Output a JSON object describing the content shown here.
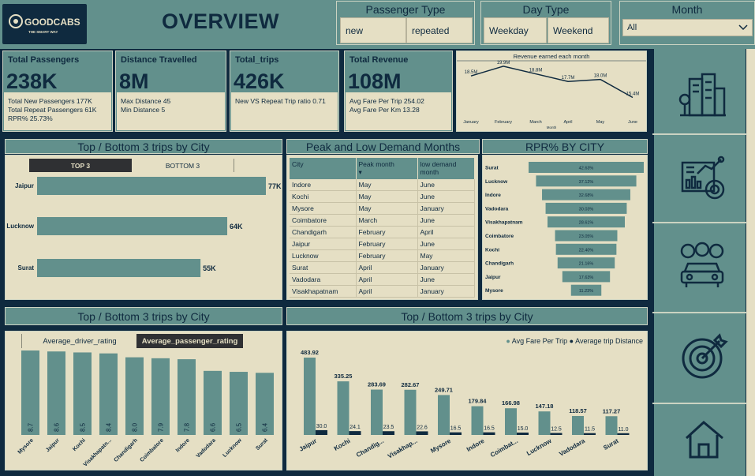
{
  "header": {
    "logo_text": "GOODCABS",
    "logo_tagline": "THE SMART WAY",
    "title": "OVERVIEW"
  },
  "filters": {
    "passenger_type": {
      "label": "Passenger Type",
      "options": [
        "new",
        "repeated"
      ]
    },
    "day_type": {
      "label": "Day Type",
      "options": [
        "Weekday",
        "Weekend"
      ]
    },
    "month": {
      "label": "Month",
      "selected": "All"
    }
  },
  "kpis": [
    {
      "label": "Total Passengers",
      "value": "238K",
      "lines": [
        "Total New Passengers 177K",
        "Total Repeat Passengers 61K",
        "RPR% 25.73%"
      ]
    },
    {
      "label": "Distance Travelled",
      "value": "8M",
      "lines": [
        "Max Distance 45",
        "Min Distance 5"
      ]
    },
    {
      "label": "Total_trips",
      "value": "426K",
      "lines": [
        "New VS Repeat Trip ratio 0.71"
      ]
    },
    {
      "label": "Total Revenue",
      "value": "108M",
      "lines": [
        "Avg Fare Per Trip 254.02",
        "Avg Fare Per Km 13.28"
      ]
    }
  ],
  "revenue_chart": {
    "title": "Revenue earned each month",
    "xlabel": "Month",
    "months": [
      "January",
      "February",
      "March",
      "April",
      "May",
      "June"
    ],
    "values": [
      18.5,
      19.9,
      18.8,
      17.7,
      18.0,
      15.4
    ],
    "labels": [
      "18.5M",
      "19.9M",
      "18.8M",
      "17.7M",
      "18.0M",
      "15.4M"
    ]
  },
  "top_bottom_trips": {
    "title": "Top / Bottom 3 trips by City",
    "tabs": [
      "TOP 3",
      "BOTTOM 3"
    ],
    "cities": [
      "Jaipur",
      "Lucknow",
      "Surat"
    ],
    "values": [
      77,
      64,
      55
    ],
    "labels": [
      "77K",
      "64K",
      "55K"
    ]
  },
  "demand_table": {
    "title": "Peak and Low Demand Months",
    "headers": [
      "City",
      "Peak month",
      "low demand month"
    ],
    "rows": [
      [
        "Indore",
        "May",
        "June"
      ],
      [
        "Kochi",
        "May",
        "June"
      ],
      [
        "Mysore",
        "May",
        "January"
      ],
      [
        "Coimbatore",
        "March",
        "June"
      ],
      [
        "Chandigarh",
        "February",
        "April"
      ],
      [
        "Jaipur",
        "February",
        "June"
      ],
      [
        "Lucknow",
        "February",
        "May"
      ],
      [
        "Surat",
        "April",
        "January"
      ],
      [
        "Vadodara",
        "April",
        "June"
      ],
      [
        "Visakhapatnam",
        "April",
        "January"
      ]
    ]
  },
  "rpr_chart": {
    "title": "RPR% BY CITY",
    "cities": [
      "Surat",
      "Lucknow",
      "Indore",
      "Vadodara",
      "Visakhapatnam",
      "Coimbatore",
      "Kochi",
      "Chandigarh",
      "Jaipur",
      "Mysore"
    ],
    "values": [
      42.63,
      37.12,
      32.68,
      30.03,
      28.61,
      23.05,
      22.4,
      21.16,
      17.63,
      11.23
    ],
    "labels": [
      "42.63%",
      "37.12%",
      "32.68%",
      "30.03%",
      "28.61%",
      "23.05%",
      "22.40%",
      "21.16%",
      "17.63%",
      "11.23%"
    ]
  },
  "rating_chart": {
    "title": "Top / Bottom 3 trips by City",
    "tabs": [
      "Average_driver_rating",
      "Average_passenger_rating"
    ],
    "cities": [
      "Mysore",
      "Jaipur",
      "Kochi",
      "Visakhapatn...",
      "Chandigarh",
      "Coimbatore",
      "Indore",
      "Vadodara",
      "Lucknow",
      "Surat"
    ],
    "values": [
      8.7,
      8.6,
      8.5,
      8.4,
      8.0,
      7.9,
      7.8,
      6.6,
      6.5,
      6.4
    ],
    "labels": [
      "8.7",
      "8.6",
      "8.5",
      "8.4",
      "8.0",
      "7.9",
      "7.8",
      "6.6",
      "6.5",
      "6.4"
    ]
  },
  "fare_chart": {
    "title": "Top / Bottom 3 trips by City",
    "legend": [
      "Avg Fare Per Trip",
      "Average trip Distance"
    ],
    "cities": [
      "Jaipur",
      "Kochi",
      "Chandig...",
      "Visakhap...",
      "Mysore",
      "Indore",
      "Coimbat...",
      "Lucknow",
      "Vadodara",
      "Surat"
    ],
    "fare": [
      483.92,
      335.25,
      283.69,
      282.67,
      249.71,
      179.84,
      166.98,
      147.18,
      118.57,
      117.27
    ],
    "fare_labels": [
      "483.92",
      "335.25",
      "283.69",
      "282.67",
      "249.71",
      "179.84",
      "166.98",
      "147.18",
      "118.57",
      "117.27"
    ],
    "distance": [
      30.0,
      24.1,
      23.5,
      22.6,
      16.5,
      16.5,
      15.0,
      12.5,
      11.5,
      11.0
    ],
    "distance_labels": [
      "30.0",
      "24.1",
      "23.5",
      "22.6",
      "16.5",
      "16.5",
      "15.0",
      "12.5",
      "11.5",
      "11.0"
    ]
  },
  "sidebar": {
    "icons": [
      "city-icon",
      "analytics-icon",
      "passengers-car-icon",
      "target-icon",
      "home-icon"
    ]
  },
  "colors": {
    "teal": "#62908c",
    "cream": "#e5dfc4",
    "navy": "#0f2a3f"
  }
}
